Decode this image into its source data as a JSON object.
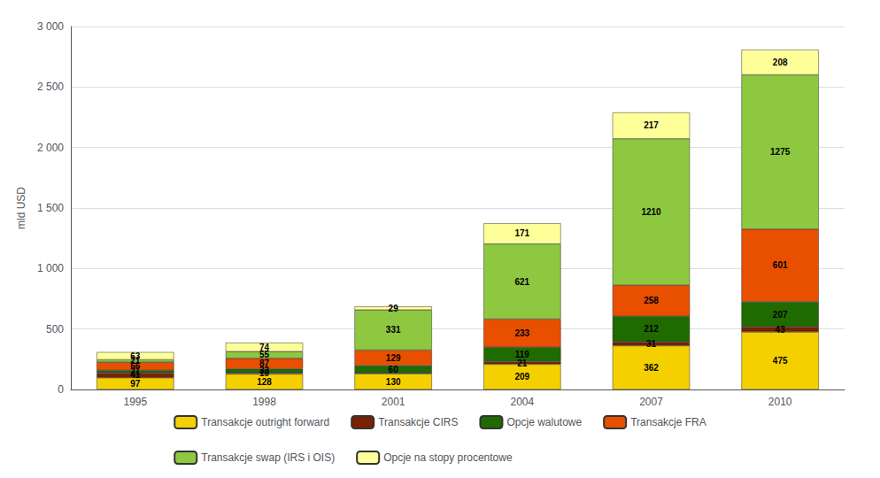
{
  "chart_data": {
    "type": "bar",
    "stacked": true,
    "categories": [
      "1995",
      "1998",
      "2001",
      "2004",
      "2007",
      "2010"
    ],
    "series": [
      {
        "name": "Transakcje outright forward",
        "color": "#F5D000",
        "values": [
          97,
          128,
          130,
          209,
          362,
          475
        ]
      },
      {
        "name": "Transakcje CIRS",
        "color": "#7B2000",
        "values": [
          41,
          10,
          7,
          21,
          31,
          43
        ],
        "value_labels": [
          "41",
          "10",
          null,
          "21",
          "31",
          "43"
        ]
      },
      {
        "name": "Opcje walutowe",
        "color": "#1F6B00",
        "values": [
          21,
          33,
          60,
          119,
          212,
          207
        ]
      },
      {
        "name": "Transakcje FRA",
        "color": "#E85000",
        "values": [
          66,
          87,
          129,
          233,
          258,
          601
        ]
      },
      {
        "name": "Transakcje swap (IRS i OIS)",
        "color": "#8DC840",
        "values": [
          21,
          55,
          331,
          621,
          1210,
          1275
        ]
      },
      {
        "name": "Opcje na stopy procentowe",
        "color": "#FFFF99",
        "values": [
          63,
          74,
          29,
          171,
          217,
          208
        ]
      }
    ],
    "ylabel": "mld USD",
    "ylim": [
      0,
      3000
    ],
    "yticks": [
      0,
      500,
      {
        "value": 1000,
        "label": "1 000"
      },
      {
        "value": 1500,
        "label": "1 500"
      },
      {
        "value": 2000,
        "label": "2 000"
      },
      {
        "value": 2500,
        "label": "2 500"
      },
      {
        "value": 3000,
        "label": "3 000"
      }
    ],
    "grid": true,
    "legend": "bottom",
    "data_labels": true
  }
}
